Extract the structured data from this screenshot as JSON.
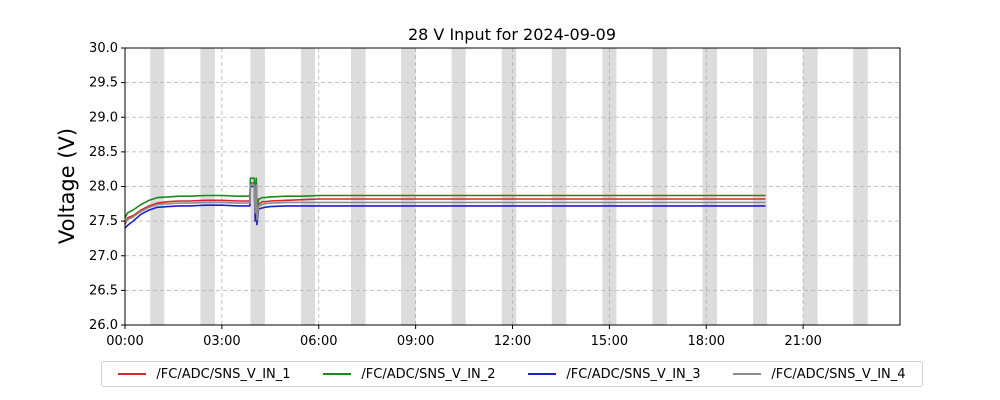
{
  "chart_data": {
    "type": "line",
    "title": "28 V Input for 2024-09-09",
    "xlabel": "",
    "ylabel": "Voltage (V)",
    "ylim": [
      26.0,
      30.0
    ],
    "xlim": [
      "00:00",
      "24:00"
    ],
    "x_ticks": [
      "00:00",
      "03:00",
      "06:00",
      "09:00",
      "12:00",
      "15:00",
      "18:00",
      "21:00"
    ],
    "y_ticks": [
      "26.0",
      "26.5",
      "27.0",
      "27.5",
      "28.0",
      "28.5",
      "29.0",
      "29.5",
      "30.0"
    ],
    "grid": true,
    "legend_position": "bottom",
    "shaded_bands": [
      [
        "00:47",
        "01:13"
      ],
      [
        "02:20",
        "02:47"
      ],
      [
        "03:53",
        "04:20"
      ],
      [
        "05:27",
        "05:53"
      ],
      [
        "07:00",
        "07:27"
      ],
      [
        "08:33",
        "09:00"
      ],
      [
        "10:07",
        "10:33"
      ],
      [
        "11:40",
        "12:07"
      ],
      [
        "13:13",
        "13:40"
      ],
      [
        "14:47",
        "15:13"
      ],
      [
        "16:20",
        "16:47"
      ],
      [
        "17:53",
        "18:20"
      ],
      [
        "19:27",
        "19:53"
      ],
      [
        "21:00",
        "21:27"
      ],
      [
        "22:33",
        "23:00"
      ]
    ],
    "series": [
      {
        "name": "/FC/ADC/SNS_V_IN_1",
        "color": "#d62728",
        "x": [
          "00:00",
          "00:05",
          "00:15",
          "00:30",
          "00:45",
          "01:00",
          "01:20",
          "01:40",
          "02:00",
          "02:30",
          "03:00",
          "03:30",
          "03:52",
          "03:53",
          "04:00",
          "04:02",
          "04:04",
          "04:05",
          "04:08",
          "04:10",
          "04:15",
          "04:20",
          "04:30",
          "05:00",
          "05:30",
          "06:00",
          "09:00",
          "12:00",
          "15:00",
          "18:00",
          "19:50"
        ],
        "values": [
          27.45,
          27.55,
          27.58,
          27.66,
          27.72,
          27.76,
          27.78,
          27.79,
          27.79,
          27.8,
          27.8,
          27.79,
          27.79,
          28.05,
          28.05,
          27.7,
          28.05,
          27.55,
          27.75,
          27.75,
          27.78,
          27.78,
          27.79,
          27.8,
          27.81,
          27.82,
          27.82,
          27.82,
          27.82,
          27.82,
          27.82
        ]
      },
      {
        "name": "/FC/ADC/SNS_V_IN_2",
        "color": "#1a8a1a",
        "x": [
          "00:00",
          "00:05",
          "00:15",
          "00:30",
          "00:45",
          "01:00",
          "01:20",
          "01:40",
          "02:00",
          "02:30",
          "03:00",
          "03:30",
          "03:52",
          "03:53",
          "04:00",
          "04:02",
          "04:04",
          "04:05",
          "04:08",
          "04:10",
          "04:15",
          "04:20",
          "04:30",
          "05:00",
          "05:30",
          "06:00",
          "09:00",
          "12:00",
          "15:00",
          "18:00",
          "19:50"
        ],
        "values": [
          27.55,
          27.62,
          27.66,
          27.74,
          27.8,
          27.84,
          27.85,
          27.86,
          27.86,
          27.87,
          27.87,
          27.86,
          27.86,
          28.12,
          28.12,
          27.8,
          28.12,
          27.6,
          27.82,
          27.82,
          27.84,
          27.84,
          27.85,
          27.86,
          27.86,
          27.87,
          27.87,
          27.87,
          27.87,
          27.87,
          27.87
        ]
      },
      {
        "name": "/FC/ADC/SNS_V_IN_3",
        "color": "#1f1fc8",
        "x": [
          "00:00",
          "00:05",
          "00:15",
          "00:30",
          "00:45",
          "01:00",
          "01:20",
          "01:40",
          "02:00",
          "02:30",
          "03:00",
          "03:30",
          "03:52",
          "03:53",
          "04:00",
          "04:02",
          "04:04",
          "04:05",
          "04:08",
          "04:10",
          "04:15",
          "04:20",
          "04:30",
          "05:00",
          "05:30",
          "06:00",
          "09:00",
          "12:00",
          "15:00",
          "18:00",
          "19:50"
        ],
        "values": [
          27.4,
          27.44,
          27.5,
          27.6,
          27.66,
          27.7,
          27.71,
          27.72,
          27.72,
          27.73,
          27.73,
          27.72,
          27.72,
          28.0,
          28.0,
          27.5,
          28.0,
          27.45,
          27.68,
          27.68,
          27.69,
          27.7,
          27.71,
          27.72,
          27.72,
          27.72,
          27.72,
          27.72,
          27.72,
          27.72,
          27.72
        ]
      },
      {
        "name": "/FC/ADC/SNS_V_IN_4",
        "color": "#8c8c8c",
        "x": [
          "00:00",
          "00:05",
          "00:15",
          "00:30",
          "00:45",
          "01:00",
          "01:20",
          "01:40",
          "02:00",
          "02:30",
          "03:00",
          "03:30",
          "03:52",
          "03:53",
          "04:00",
          "04:02",
          "04:04",
          "04:05",
          "04:08",
          "04:10",
          "04:15",
          "04:20",
          "04:30",
          "05:00",
          "05:30",
          "06:00",
          "09:00",
          "12:00",
          "15:00",
          "18:00",
          "19:50"
        ],
        "values": [
          27.48,
          27.52,
          27.56,
          27.64,
          27.7,
          27.74,
          27.75,
          27.76,
          27.76,
          27.77,
          27.77,
          27.76,
          27.76,
          28.02,
          28.02,
          27.62,
          28.02,
          27.52,
          27.72,
          27.72,
          27.74,
          27.75,
          27.76,
          27.77,
          27.77,
          27.77,
          27.77,
          27.77,
          27.77,
          27.77,
          27.77
        ]
      }
    ]
  }
}
